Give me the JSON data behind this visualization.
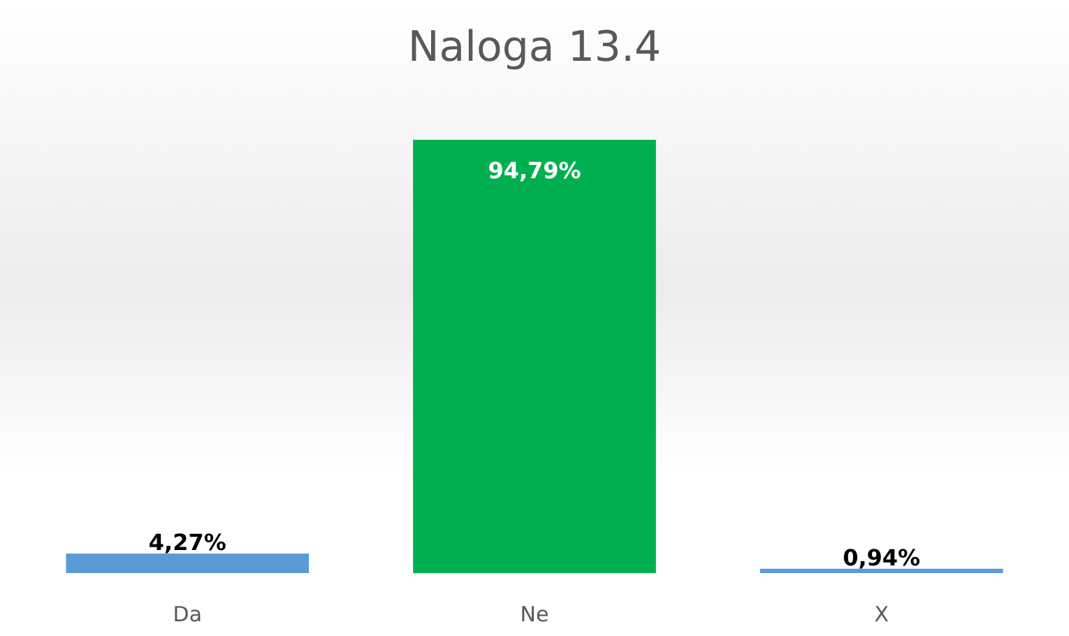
{
  "chart_data": {
    "type": "bar",
    "title": "Naloga 13.4",
    "categories": [
      "Da",
      "Ne",
      "X"
    ],
    "values": [
      4.27,
      94.79,
      0.94
    ],
    "value_labels": [
      "4,27%",
      "94,79%",
      "0,94%"
    ],
    "colors": [
      "#5b9bd5",
      "#00b050",
      "#5b9bd5"
    ]
  }
}
